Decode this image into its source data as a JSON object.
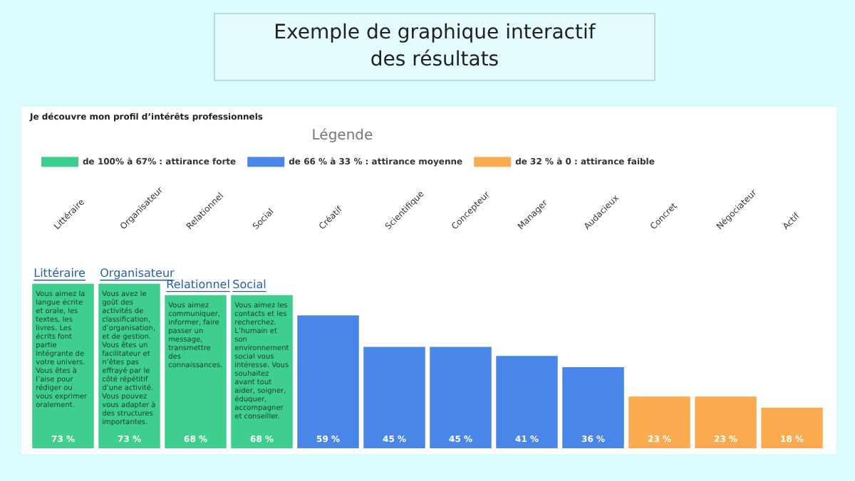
{
  "chart_data": {
    "type": "bar",
    "title": "Exemple de graphique interactif des résultats",
    "subtitle": "Je découvre mon profil d’intérêts professionnels",
    "legend_title": "Légende",
    "legend": "top left",
    "stacked": true,
    "tick_labels": "x",
    "categories": [
      "Littéraire",
      "Organisateur",
      "Relationnel",
      "Social",
      "Créatif",
      "Scientifique",
      "Concepteur",
      "Manager",
      "Audacieux",
      "Concret",
      "Négociateur",
      "Actif"
    ],
    "series": [
      {
        "name": "de 100% à 67% : attirance forte",
        "color": "#3ecf8e",
        "values": [
          73,
          73,
          68,
          68,
          null,
          null,
          null,
          null,
          null,
          null,
          null,
          null
        ],
        "value_labels": [
          "73 %",
          "73 %",
          "68 %",
          "68 %",
          null,
          null,
          null,
          null,
          null,
          null,
          null,
          null
        ]
      },
      {
        "name": "de 66 % à 33 % : attirance moyenne",
        "color": "#4a86e8",
        "values": [
          null,
          null,
          null,
          null,
          59,
          45,
          45,
          41,
          36,
          null,
          null,
          null
        ],
        "value_labels": [
          null,
          null,
          null,
          null,
          "59 %",
          "45 %",
          "45 %",
          "41 %",
          "36 %",
          null,
          null,
          null
        ]
      },
      {
        "name": "de 32 % à 0 : attirance faible",
        "color": "#fbab4f",
        "values": [
          null,
          null,
          null,
          null,
          null,
          null,
          null,
          null,
          null,
          23,
          23,
          18
        ],
        "value_labels": [
          null,
          null,
          null,
          null,
          null,
          null,
          null,
          null,
          null,
          "23 %",
          "23 %",
          "18 %"
        ]
      }
    ],
    "annotations": [
      {
        "text": "Littéraire",
        "x": "Littéraire",
        "y": 73
      },
      "Vous aimez la langue écrite et orale, les textes, les livres.",
      "Les écrits font partie intégrante de votre univers.",
      "Vous êtes à l’aise pour rédiger ou vous exprimer oralement.",
      {
        "text": "Organisateur",
        "x": "Organisateur",
        "y": 73
      },
      "Vous avez le goût des activités de classification, d’organisation, et de gestion.",
      "Vous êtes un facilitateur et n’êtes pas effrayé par le côté répétitif d’une activité.",
      "Vous pouvez vous adapter à des structures importantes.",
      {
        "text": "Relationnel",
        "x": "Relationnel",
        "y": 68
      },
      "Vous aimez communiquer, informer, faire passer un message, transmettre des connaissances.",
      {
        "text": "Social",
        "x": "Social",
        "y": 68
      },
      "Vous aimez les contacts et les recherchez.",
      "L’humain et son environnement social vous intéresse.",
      "Vous souhaitez avant tout aider, soigner, éduquer, accompagner et conseiller."
    ]
  }
}
